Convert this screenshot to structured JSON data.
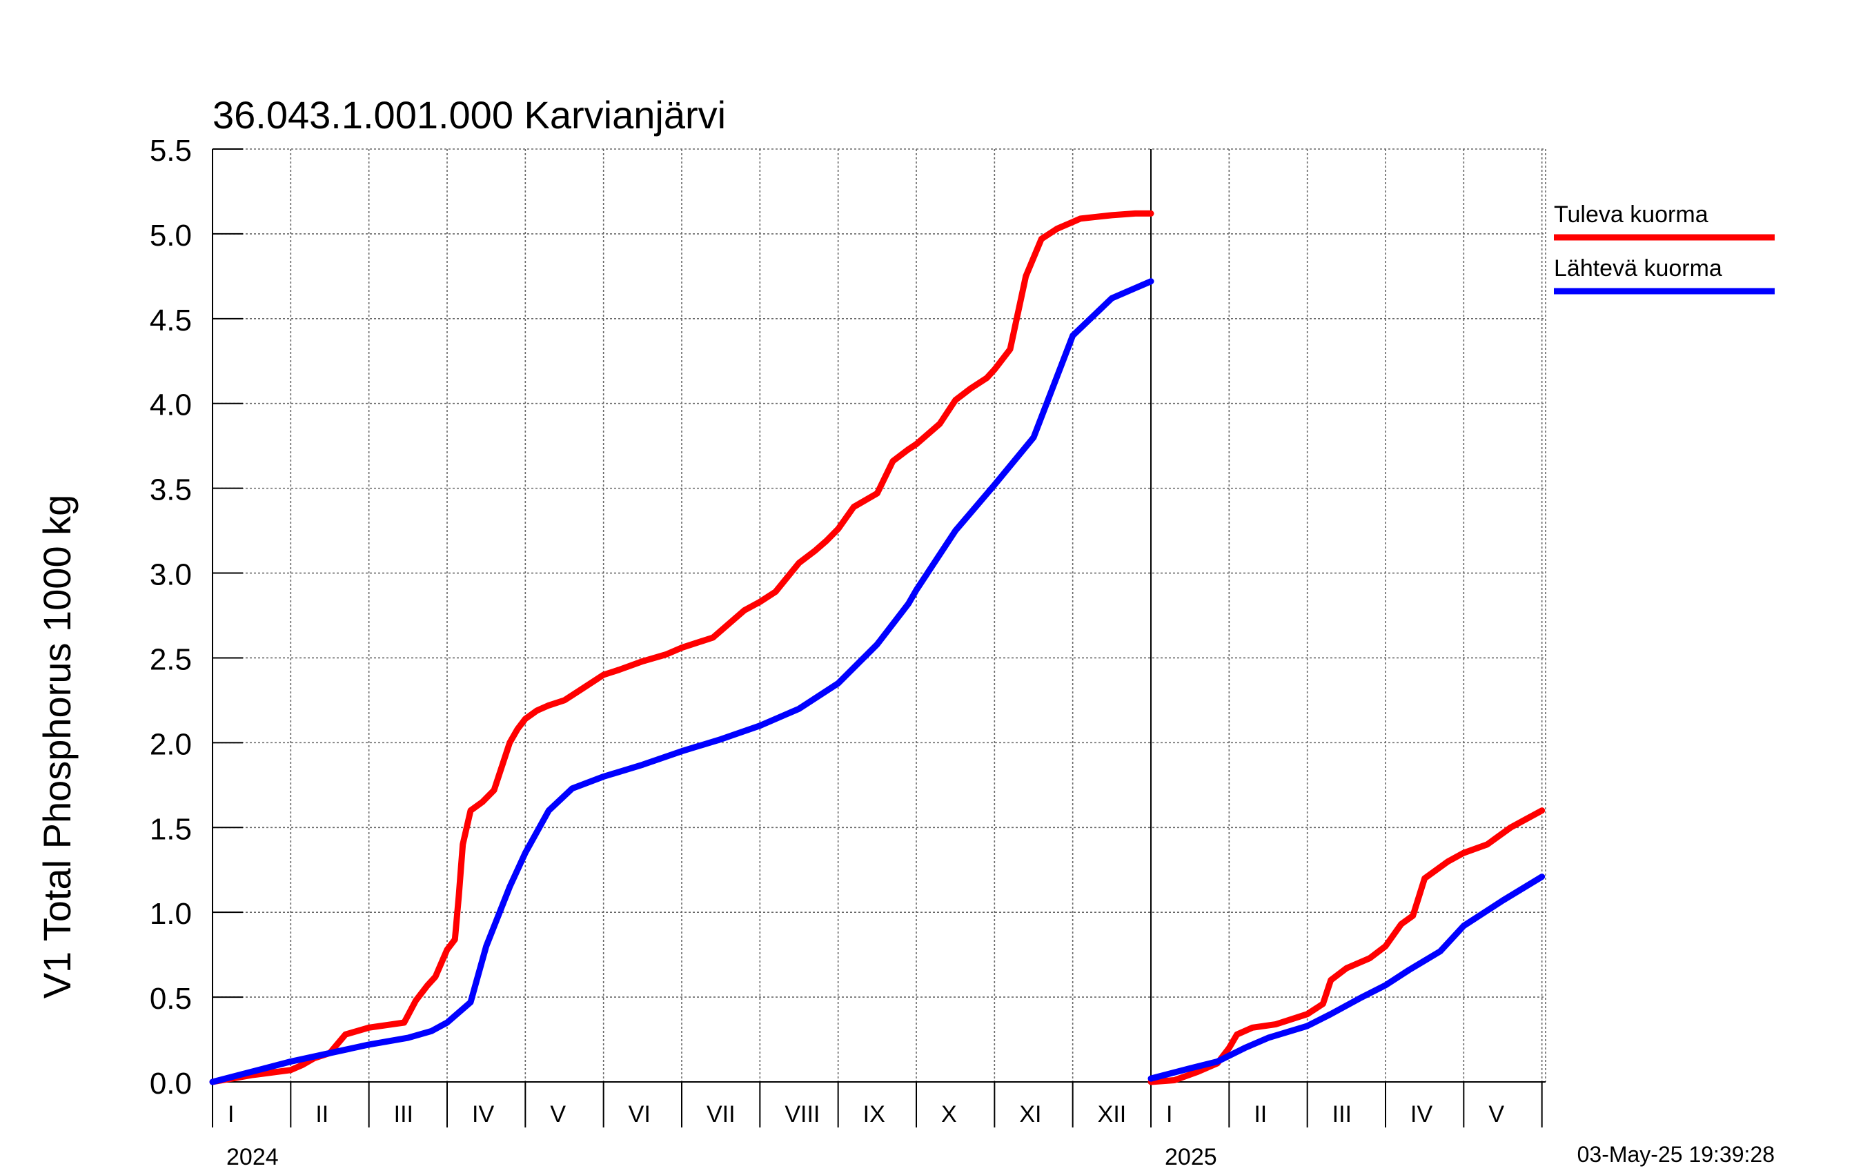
{
  "chart_data": {
    "type": "line",
    "title": "36.043.1.001.000 Karvianjärvi",
    "ylabel": "V1 Total Phosphorus 1000 kg",
    "ylim": [
      0,
      5.5
    ],
    "yticks": [
      "0.0",
      "0.5",
      "1.0",
      "1.5",
      "2.0",
      "2.5",
      "3.0",
      "3.5",
      "4.0",
      "4.5",
      "5.0",
      "5.5"
    ],
    "years": [
      {
        "label": "2024",
        "months": [
          "I",
          "II",
          "III",
          "IV",
          "V",
          "VI",
          "VII",
          "VIII",
          "IX",
          "X",
          "XI",
          "XII"
        ]
      },
      {
        "label": "2025",
        "months": [
          "I",
          "II",
          "III",
          "IV",
          "V"
        ]
      }
    ],
    "timestamp": "03-May-25 19:39:28",
    "series": [
      {
        "name": "Tuleva kuorma",
        "color": "#ff0000",
        "segments": [
          {
            "x": [
              0,
              0.5,
              1,
              1.15,
              1.3,
              1.5,
              1.7,
              2,
              2.3,
              2.45,
              2.6,
              2.75,
              2.85,
              3,
              3.1,
              3.15,
              3.2,
              3.3,
              3.45,
              3.6,
              3.8,
              3.9,
              4,
              4.15,
              4.3,
              4.5,
              4.7,
              5,
              5.2,
              5.5,
              5.8,
              6,
              6.4,
              6.8,
              7,
              7.2,
              7.5,
              7.7,
              7.85,
              8,
              8.2,
              8.5,
              8.7,
              8.9,
              9,
              9.3,
              9.5,
              9.7,
              9.9,
              10,
              10.2,
              10.4,
              10.6,
              10.8,
              10.9,
              11,
              11.1,
              11.3,
              11.5,
              11.8,
              12
            ],
            "y": [
              0,
              0.04,
              0.07,
              0.1,
              0.14,
              0.17,
              0.28,
              0.32,
              0.34,
              0.35,
              0.48,
              0.57,
              0.62,
              0.78,
              0.84,
              1.1,
              1.4,
              1.6,
              1.65,
              1.72,
              2.0,
              2.08,
              2.14,
              2.19,
              2.22,
              2.25,
              2.31,
              2.4,
              2.43,
              2.48,
              2.52,
              2.56,
              2.62,
              2.78,
              2.83,
              2.89,
              3.06,
              3.13,
              3.19,
              3.26,
              3.39,
              3.47,
              3.66,
              3.73,
              3.76,
              3.88,
              4.02,
              4.09,
              4.15,
              4.2,
              4.32,
              4.75,
              4.97,
              5.03,
              5.05,
              5.07,
              5.09,
              5.1,
              5.11,
              5.12,
              5.12
            ]
          },
          {
            "x": [
              0,
              0.3,
              0.6,
              0.85,
              1,
              1.1,
              1.3,
              1.6,
              2,
              2.2,
              2.3,
              2.5,
              2.8,
              3,
              3.2,
              3.35,
              3.5,
              3.8,
              4,
              4.3,
              4.6,
              4.8,
              5
            ],
            "y": [
              0,
              0.01,
              0.06,
              0.11,
              0.2,
              0.28,
              0.32,
              0.34,
              0.4,
              0.46,
              0.6,
              0.67,
              0.73,
              0.8,
              0.93,
              0.98,
              1.2,
              1.3,
              1.35,
              1.4,
              1.5,
              1.55,
              1.6
            ]
          }
        ]
      },
      {
        "name": "Lähtevä kuorma",
        "color": "#0000ff",
        "segments": [
          {
            "x": [
              0,
              1,
              2,
              2.5,
              2.8,
              3,
              3.3,
              3.5,
              3.8,
              4,
              4.3,
              4.6,
              5,
              5.5,
              6,
              6.5,
              7,
              7.5,
              8,
              8.5,
              8.9,
              9,
              9.5,
              10,
              10.5,
              11,
              11.5,
              12
            ],
            "y": [
              0,
              0.12,
              0.22,
              0.26,
              0.3,
              0.35,
              0.47,
              0.8,
              1.15,
              1.35,
              1.6,
              1.73,
              1.8,
              1.87,
              1.95,
              2.02,
              2.1,
              2.2,
              2.35,
              2.58,
              2.82,
              2.9,
              3.25,
              3.52,
              3.8,
              4.4,
              4.62,
              4.72
            ]
          },
          {
            "x": [
              0,
              0.5,
              0.85,
              1.2,
              1.5,
              2,
              2.3,
              2.7,
              3,
              3.3,
              3.7,
              4,
              4.5,
              5
            ],
            "y": [
              0.02,
              0.08,
              0.12,
              0.2,
              0.26,
              0.33,
              0.4,
              0.5,
              0.57,
              0.66,
              0.77,
              0.92,
              1.07,
              1.21
            ]
          }
        ]
      }
    ],
    "legend_position": "right"
  }
}
